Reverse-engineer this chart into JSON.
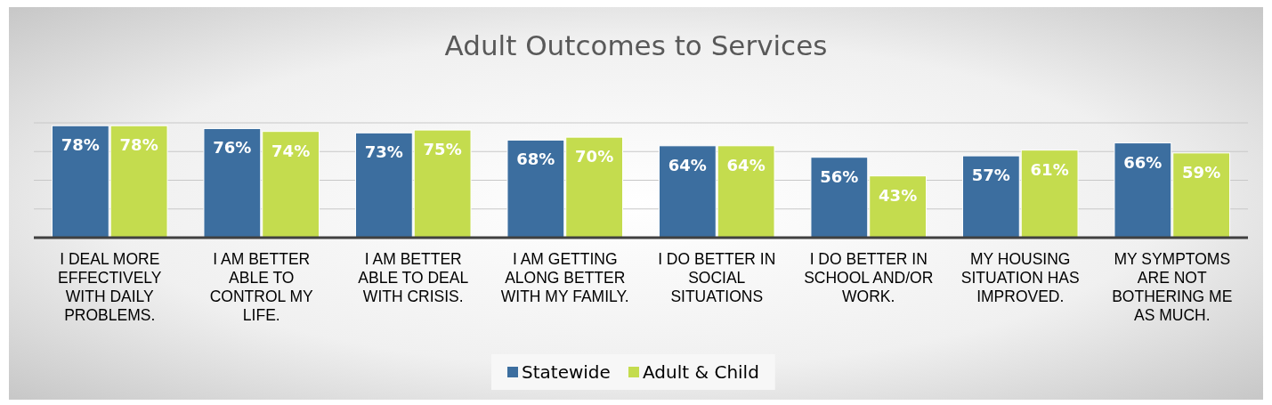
{
  "chart_data": {
    "type": "bar",
    "title": "Adult Outcomes to Services",
    "categories": [
      "I DEAL MORE EFFECTIVELY WITH DAILY PROBLEMS.",
      "I AM BETTER ABLE TO CONTROL MY LIFE.",
      "I AM BETTER ABLE TO DEAL WITH CRISIS.",
      "I AM GETTING ALONG BETTER WITH MY FAMILY.",
      "I DO BETTER IN SOCIAL SITUATIONS",
      "I DO BETTER IN SCHOOL AND/OR WORK.",
      "MY HOUSING SITUATION HAS IMPROVED.",
      "MY SYMPTOMS ARE NOT BOTHERING ME AS MUCH."
    ],
    "series": [
      {
        "name": "Statewide",
        "color": "#3c6e9f",
        "values": [
          78,
          76,
          73,
          68,
          64,
          56,
          57,
          66
        ],
        "value_labels": [
          "78%",
          "76%",
          "73%",
          "68%",
          "64%",
          "56%",
          "57%",
          "66%"
        ]
      },
      {
        "name": "Adult & Child",
        "color": "#c4dc4e",
        "values": [
          78,
          74,
          75,
          70,
          64,
          43,
          61,
          59
        ],
        "value_labels": [
          "78%",
          "74%",
          "75%",
          "70%",
          "64%",
          "43%",
          "61%",
          "59%"
        ]
      }
    ],
    "ylim": [
      0,
      80
    ],
    "yticks": [
      {
        "value": 0,
        "label": null
      },
      {
        "value": 20,
        "label": null
      },
      {
        "value": 40,
        "label": null
      },
      {
        "value": 60,
        "label": null
      },
      {
        "value": 80,
        "label": null
      }
    ],
    "tick_labels": "x",
    "grid": "y",
    "legend": "bottom"
  }
}
